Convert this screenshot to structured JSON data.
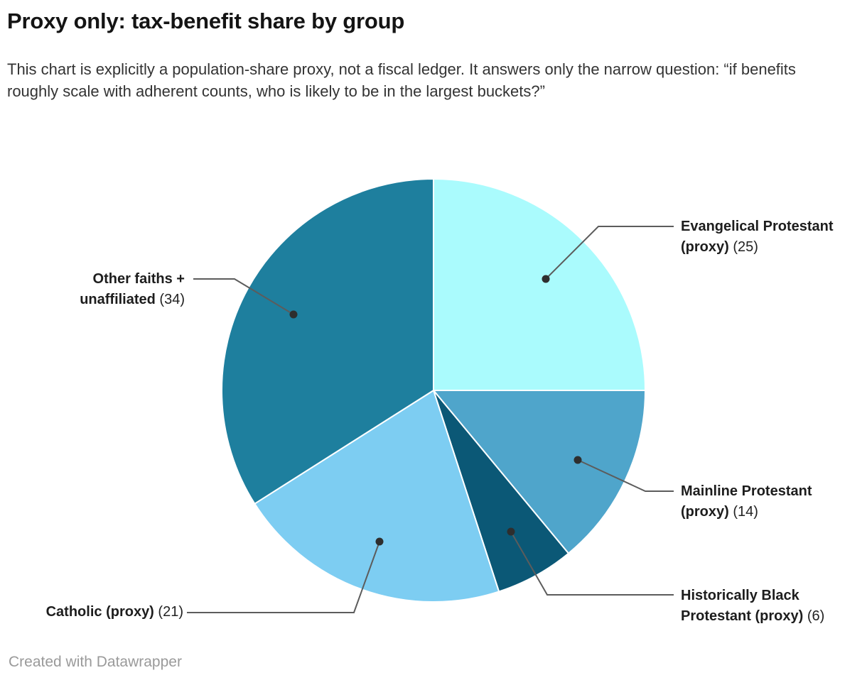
{
  "header": {
    "title": "Proxy only: tax-benefit share by group",
    "description": "This chart is explicitly a population-share proxy, not a fiscal ledger. It answers only the narrow question: “if benefits roughly scale with adherent counts, who is likely to be in the largest buckets?”"
  },
  "chart_data": {
    "type": "pie",
    "title": "Proxy only: tax-benefit share by group",
    "total": 100,
    "start_position": "12 o'clock",
    "direction": "clockwise",
    "legend_position": "callout-labels-with-connectors",
    "slices": [
      {
        "label": "Evangelical Protestant (proxy)",
        "value": 25,
        "value_display": "(25)",
        "color": "#AAFBFD"
      },
      {
        "label": "Mainline Protestant (proxy)",
        "value": 14,
        "value_display": "(14)",
        "color": "#4FA5CB"
      },
      {
        "label": "Historically Black Protestant (proxy)",
        "value": 6,
        "value_display": "(6)",
        "color": "#0B5876"
      },
      {
        "label": "Catholic (proxy)",
        "value": 21,
        "value_display": "(21)",
        "color": "#7DCDF2"
      },
      {
        "label": "Other faiths + unaffiliated",
        "value": 34,
        "value_display": "(34)",
        "color": "#1E7F9E"
      }
    ],
    "connector_color": "#5c5c5c",
    "dot_color": "#2e2e2e",
    "slice_border_color": "#ffffff"
  },
  "footer": {
    "attribution": "Created with Datawrapper"
  }
}
